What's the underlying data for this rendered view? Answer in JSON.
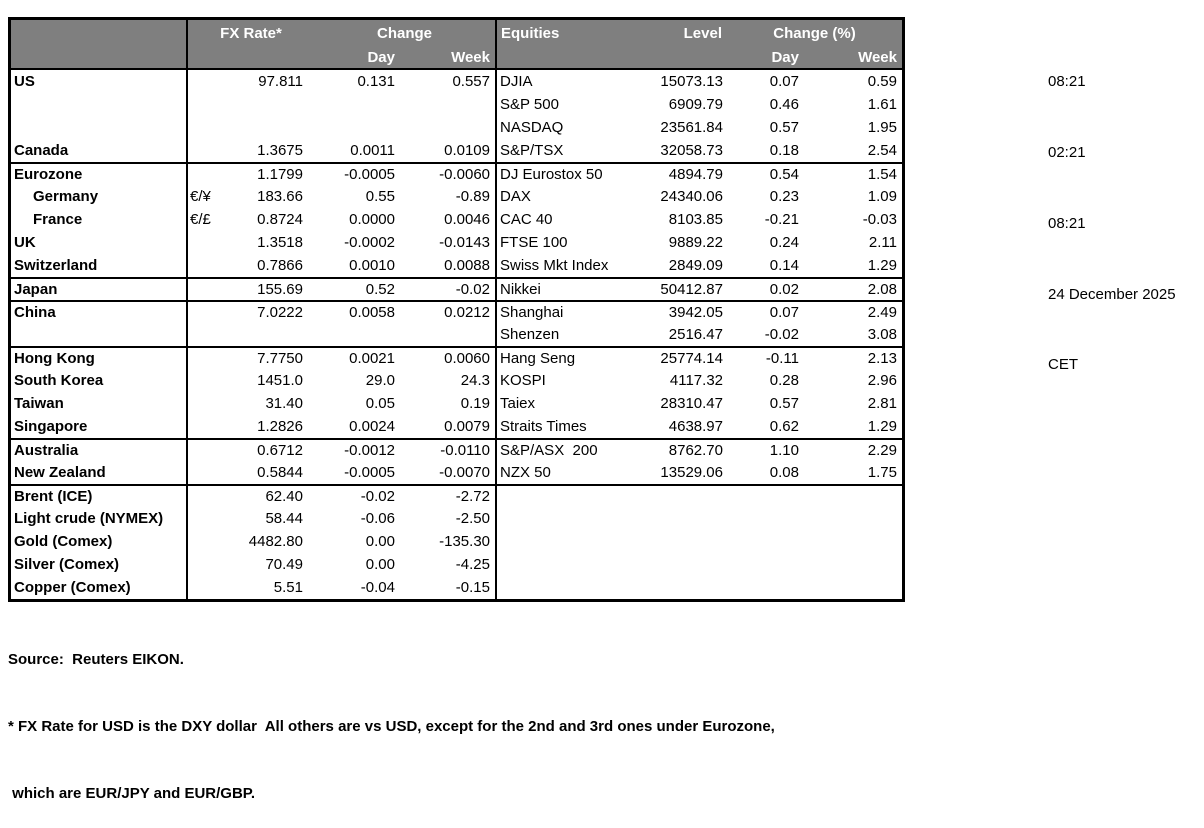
{
  "colors": {
    "header_bg": "#7f7f7f",
    "header_text": "#ffffff",
    "border": "#000000"
  },
  "clock": {
    "lines": [
      "08:21",
      "02:21",
      "08:21",
      "24 December 2025",
      "CET"
    ]
  },
  "table": {
    "header": {
      "fx_rate": "FX Rate*",
      "change": "Change",
      "day_left": "Day",
      "week_left": "Week",
      "equities": "Equities",
      "level": "Level",
      "change_pct": "Change (%)",
      "day_right": "Day",
      "week_right": "Week"
    },
    "rows": [
      {
        "name": "US",
        "indent": false,
        "pair": "",
        "fx": "97.811",
        "day": "0.131",
        "week": "0.557",
        "equity": "DJIA",
        "level": "15073.13",
        "eday": "0.07",
        "eweek": "0.59",
        "group_top": false
      },
      {
        "name": "",
        "indent": false,
        "pair": "",
        "fx": "",
        "day": "",
        "week": "",
        "equity": "S&P 500",
        "level": "6909.79",
        "eday": "0.46",
        "eweek": "1.61",
        "group_top": false
      },
      {
        "name": "",
        "indent": false,
        "pair": "",
        "fx": "",
        "day": "",
        "week": "",
        "equity": "NASDAQ",
        "level": "23561.84",
        "eday": "0.57",
        "eweek": "1.95",
        "group_top": false
      },
      {
        "name": "Canada",
        "indent": false,
        "pair": "",
        "fx": "1.3675",
        "day": "0.0011",
        "week": "0.0109",
        "equity": "S&P/TSX",
        "level": "32058.73",
        "eday": "0.18",
        "eweek": "2.54",
        "group_top": false
      },
      {
        "name": "Eurozone",
        "indent": false,
        "pair": "",
        "fx": "1.1799",
        "day": "-0.0005",
        "week": "-0.0060",
        "equity": "DJ Eurostox 50",
        "level": "4894.79",
        "eday": "0.54",
        "eweek": "1.54",
        "group_top": true
      },
      {
        "name": "Germany",
        "indent": true,
        "pair": "€/¥",
        "fx": "183.66",
        "day": "0.55",
        "week": "-0.89",
        "equity": "DAX",
        "level": "24340.06",
        "eday": "0.23",
        "eweek": "1.09",
        "group_top": false
      },
      {
        "name": "France",
        "indent": true,
        "pair": "€/£",
        "fx": "0.8724",
        "day": "0.0000",
        "week": "0.0046",
        "equity": "CAC 40",
        "level": "8103.85",
        "eday": "-0.21",
        "eweek": "-0.03",
        "group_top": false
      },
      {
        "name": "UK",
        "indent": false,
        "pair": "",
        "fx": "1.3518",
        "day": "-0.0002",
        "week": "-0.0143",
        "equity": "FTSE 100",
        "level": "9889.22",
        "eday": "0.24",
        "eweek": "2.11",
        "group_top": false
      },
      {
        "name": "Switzerland",
        "indent": false,
        "pair": "",
        "fx": "0.7866",
        "day": "0.0010",
        "week": "0.0088",
        "equity": "Swiss Mkt Index",
        "level": "2849.09",
        "eday": "0.14",
        "eweek": "1.29",
        "group_top": false
      },
      {
        "name": "Japan",
        "indent": false,
        "pair": "",
        "fx": "155.69",
        "day": "0.52",
        "week": "-0.02",
        "equity": "Nikkei",
        "level": "50412.87",
        "eday": "0.02",
        "eweek": "2.08",
        "group_top": true
      },
      {
        "name": "China",
        "indent": false,
        "pair": "",
        "fx": "7.0222",
        "day": "0.0058",
        "week": "0.0212",
        "equity": "Shanghai",
        "level": "3942.05",
        "eday": "0.07",
        "eweek": "2.49",
        "group_top": true
      },
      {
        "name": "",
        "indent": false,
        "pair": "",
        "fx": "",
        "day": "",
        "week": "",
        "equity": "Shenzen",
        "level": "2516.47",
        "eday": "-0.02",
        "eweek": "3.08",
        "group_top": false
      },
      {
        "name": "Hong Kong",
        "indent": false,
        "pair": "",
        "fx": "7.7750",
        "day": "0.0021",
        "week": "0.0060",
        "equity": "Hang Seng",
        "level": "25774.14",
        "eday": "-0.11",
        "eweek": "2.13",
        "group_top": true
      },
      {
        "name": "South Korea",
        "indent": false,
        "pair": "",
        "fx": "1451.0",
        "day": "29.0",
        "week": "24.3",
        "equity": "KOSPI",
        "level": "4117.32",
        "eday": "0.28",
        "eweek": "2.96",
        "group_top": false
      },
      {
        "name": "Taiwan",
        "indent": false,
        "pair": "",
        "fx": "31.40",
        "day": "0.05",
        "week": "0.19",
        "equity": "Taiex",
        "level": "28310.47",
        "eday": "0.57",
        "eweek": "2.81",
        "group_top": false
      },
      {
        "name": "Singapore",
        "indent": false,
        "pair": "",
        "fx": "1.2826",
        "day": "0.0024",
        "week": "0.0079",
        "equity": "Straits Times",
        "level": "4638.97",
        "eday": "0.62",
        "eweek": "1.29",
        "group_top": false
      },
      {
        "name": "Australia",
        "indent": false,
        "pair": "",
        "fx": "0.6712",
        "day": "-0.0012",
        "week": "-0.0110",
        "equity": "S&P/ASX  200",
        "level": "8762.70",
        "eday": "1.10",
        "eweek": "2.29",
        "group_top": true
      },
      {
        "name": "New Zealand",
        "indent": false,
        "pair": "",
        "fx": "0.5844",
        "day": "-0.0005",
        "week": "-0.0070",
        "equity": "NZX 50",
        "level": "13529.06",
        "eday": "0.08",
        "eweek": "1.75",
        "group_top": false
      },
      {
        "name": "Brent (ICE)",
        "indent": false,
        "pair": "",
        "fx": "62.40",
        "day": "-0.02",
        "week": "-2.72",
        "equity": "",
        "level": "",
        "eday": "",
        "eweek": "",
        "group_top": true
      },
      {
        "name": "Light crude (NYMEX)",
        "indent": false,
        "pair": "",
        "fx": "58.44",
        "day": "-0.06",
        "week": "-2.50",
        "equity": "",
        "level": "",
        "eday": "",
        "eweek": "",
        "group_top": false
      },
      {
        "name": "Gold (Comex)",
        "indent": false,
        "pair": "",
        "fx": "4482.80",
        "day": "0.00",
        "week": "-135.30",
        "equity": "",
        "level": "",
        "eday": "",
        "eweek": "",
        "group_top": false
      },
      {
        "name": "Silver (Comex)",
        "indent": false,
        "pair": "",
        "fx": "70.49",
        "day": "0.00",
        "week": "-4.25",
        "equity": "",
        "level": "",
        "eday": "",
        "eweek": "",
        "group_top": false
      },
      {
        "name": "Copper (Comex)",
        "indent": false,
        "pair": "",
        "fx": "5.51",
        "day": "-0.04",
        "week": "-0.15",
        "equity": "",
        "level": "",
        "eday": "",
        "eweek": "",
        "group_top": false
      }
    ]
  },
  "footer": {
    "source": "Source:  Reuters EIKON.",
    "note1": "* FX Rate for USD is the DXY dollar  All others are vs USD, except for the 2nd and 3rd ones under Eurozone,",
    "note2": " which are EUR/JPY and EUR/GBP."
  }
}
